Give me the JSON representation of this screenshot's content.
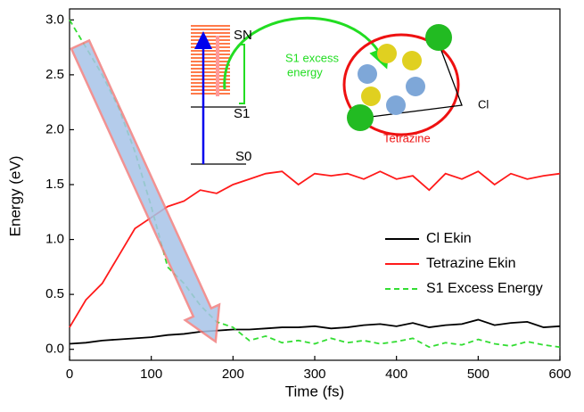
{
  "chart_data": {
    "type": "line",
    "x_label": "Time (fs)",
    "y_label": "Energy (eV)",
    "x": [
      0,
      20,
      40,
      60,
      80,
      100,
      120,
      140,
      160,
      180,
      200,
      220,
      240,
      260,
      280,
      300,
      320,
      340,
      360,
      380,
      400,
      420,
      440,
      460,
      480,
      500,
      520,
      540,
      560,
      580,
      600
    ],
    "series": [
      {
        "name": "Cl Ekin",
        "color": "#000000",
        "dash": false,
        "values": [
          0.05,
          0.06,
          0.08,
          0.09,
          0.1,
          0.11,
          0.13,
          0.14,
          0.16,
          0.17,
          0.18,
          0.18,
          0.19,
          0.2,
          0.2,
          0.21,
          0.19,
          0.2,
          0.22,
          0.23,
          0.21,
          0.24,
          0.2,
          0.22,
          0.23,
          0.27,
          0.22,
          0.24,
          0.25,
          0.2,
          0.21
        ]
      },
      {
        "name": "Tetrazine Ekin",
        "color": "#ff1a1a",
        "dash": false,
        "values": [
          0.2,
          0.45,
          0.6,
          0.85,
          1.1,
          1.2,
          1.3,
          1.35,
          1.45,
          1.42,
          1.5,
          1.55,
          1.6,
          1.62,
          1.5,
          1.6,
          1.58,
          1.6,
          1.55,
          1.62,
          1.55,
          1.58,
          1.45,
          1.6,
          1.55,
          1.62,
          1.5,
          1.6,
          1.55,
          1.58,
          1.6
        ]
      },
      {
        "name": "S1 Excess Energy",
        "color": "#33dd33",
        "dash": true,
        "values": [
          3.0,
          2.75,
          2.5,
          2.2,
          1.8,
          1.3,
          0.75,
          0.6,
          0.4,
          0.25,
          0.2,
          0.08,
          0.12,
          0.06,
          0.08,
          0.05,
          0.1,
          0.06,
          0.08,
          0.05,
          0.07,
          0.1,
          0.02,
          0.06,
          0.04,
          0.09,
          0.05,
          0.03,
          0.07,
          0.04,
          0.02
        ]
      }
    ],
    "xlim": [
      0,
      600
    ],
    "xticks": [
      0,
      100,
      200,
      300,
      400,
      500,
      600
    ],
    "ylim": [
      -0.1,
      3.1
    ],
    "yticks": [
      {
        "value": 0,
        "label": "0.0"
      },
      0.5,
      {
        "value": 1,
        "label": "1.0"
      },
      1.5,
      {
        "value": 2,
        "label": "2.0"
      },
      2.5,
      {
        "value": 3,
        "label": "3.0"
      }
    ],
    "legend": "right",
    "annotations": [
      "SN",
      "S1",
      "S0",
      "S1 excess",
      "energy",
      "Cl",
      "Tetrazine"
    ]
  }
}
